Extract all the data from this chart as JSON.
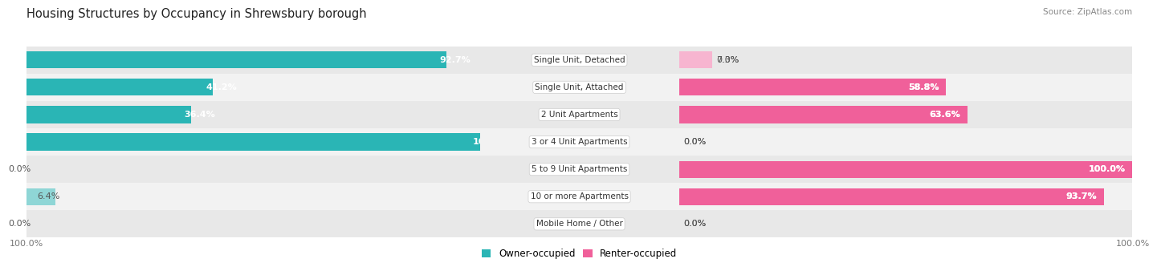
{
  "title": "Housing Structures by Occupancy in Shrewsbury borough",
  "source": "Source: ZipAtlas.com",
  "categories": [
    "Single Unit, Detached",
    "Single Unit, Attached",
    "2 Unit Apartments",
    "3 or 4 Unit Apartments",
    "5 to 9 Unit Apartments",
    "10 or more Apartments",
    "Mobile Home / Other"
  ],
  "owner_pct": [
    92.7,
    41.2,
    36.4,
    100.0,
    0.0,
    6.4,
    0.0
  ],
  "renter_pct": [
    7.3,
    58.8,
    63.6,
    0.0,
    100.0,
    93.7,
    0.0
  ],
  "owner_color_full": "#2ab5b5",
  "owner_color_light": "#8fd6d6",
  "renter_color_full": "#f0609a",
  "renter_color_light": "#f7b5d0",
  "row_bg_odd": "#e8e8e8",
  "row_bg_even": "#f2f2f2",
  "bar_height": 0.62,
  "title_fontsize": 10.5,
  "label_fontsize": 8.0,
  "cat_fontsize": 7.5,
  "legend_fontsize": 8.5,
  "source_fontsize": 7.5,
  "xlim": 100
}
